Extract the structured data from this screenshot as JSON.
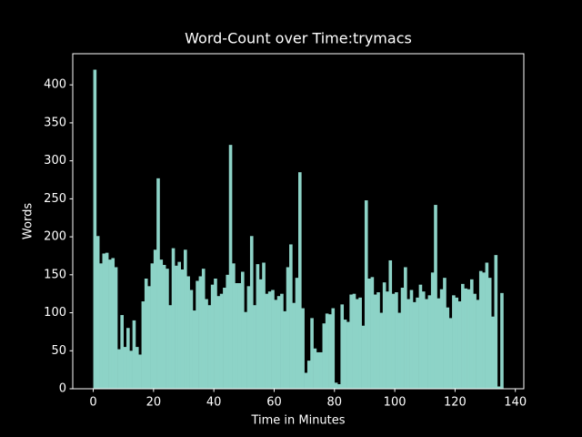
{
  "chart_data": {
    "type": "bar",
    "title": "Word-Count over Time:trymacs",
    "x_label": "Time in Minutes",
    "y_label": "Words",
    "color": "#8dd3c7",
    "x": [
      0,
      1,
      2,
      3,
      4,
      5,
      6,
      7,
      8,
      9,
      10,
      11,
      12,
      13,
      14,
      15,
      16,
      17,
      18,
      19,
      20,
      21,
      22,
      23,
      24,
      25,
      26,
      27,
      28,
      29,
      30,
      31,
      32,
      33,
      34,
      35,
      36,
      37,
      38,
      39,
      40,
      41,
      42,
      43,
      44,
      45,
      46,
      47,
      48,
      49,
      50,
      51,
      52,
      53,
      54,
      55,
      56,
      57,
      58,
      59,
      60,
      61,
      62,
      63,
      64,
      65,
      66,
      67,
      68,
      69,
      70,
      71,
      72,
      73,
      74,
      75,
      76,
      77,
      78,
      79,
      80,
      81,
      82,
      83,
      84,
      85,
      86,
      87,
      88,
      89,
      90,
      91,
      92,
      93,
      94,
      95,
      96,
      97,
      98,
      99,
      100,
      101,
      102,
      103,
      104,
      105,
      106,
      107,
      108,
      109,
      110,
      111,
      112,
      113,
      114,
      115,
      116,
      117,
      118,
      119,
      120,
      121,
      122,
      123,
      124,
      125,
      126,
      127,
      128,
      129,
      130,
      131,
      132,
      133,
      134,
      135
    ],
    "values": [
      420,
      201,
      165,
      178,
      179,
      170,
      172,
      160,
      52,
      97,
      55,
      80,
      50,
      90,
      55,
      45,
      115,
      145,
      135,
      165,
      183,
      277,
      170,
      163,
      158,
      110,
      185,
      162,
      167,
      157,
      183,
      148,
      130,
      103,
      142,
      148,
      158,
      118,
      110,
      137,
      145,
      122,
      125,
      133,
      150,
      321,
      165,
      139,
      139,
      154,
      101,
      135,
      201,
      110,
      164,
      144,
      166,
      125,
      128,
      130,
      117,
      122,
      125,
      102,
      160,
      190,
      113,
      146,
      285,
      106,
      21,
      37,
      93,
      53,
      48,
      48,
      86,
      99,
      98,
      106,
      8,
      6,
      111,
      91,
      88,
      124,
      125,
      118,
      120,
      83,
      248,
      145,
      147,
      124,
      127,
      100,
      140,
      128,
      169,
      125,
      127,
      100,
      133,
      160,
      118,
      130,
      114,
      120,
      137,
      128,
      118,
      123,
      153,
      242,
      119,
      131,
      146,
      107,
      93,
      123,
      120,
      115,
      138,
      132,
      131,
      144,
      125,
      117,
      155,
      153,
      166,
      146,
      95,
      176,
      3,
      126
    ],
    "xlim": [
      -6.8,
      142.8
    ],
    "ylim": [
      0,
      441
    ],
    "xticks": [
      0,
      20,
      40,
      60,
      80,
      100,
      120,
      140
    ],
    "yticks": [
      0,
      50,
      100,
      150,
      200,
      250,
      300,
      350,
      400
    ]
  }
}
